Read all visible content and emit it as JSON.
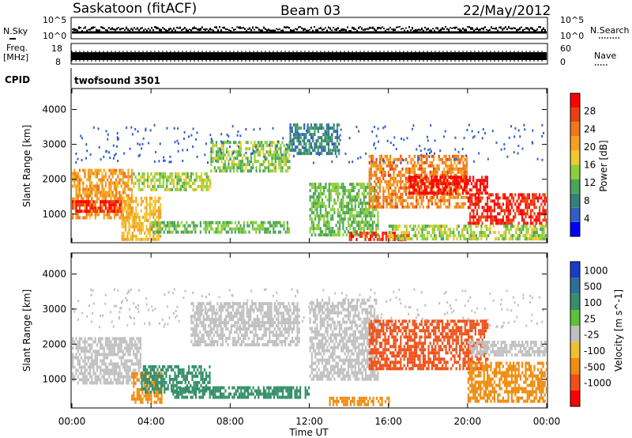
{
  "header": {
    "station": "Saskatoon (fitACF)",
    "beam": "Beam 03",
    "date": "22/May/2012"
  },
  "ancillary": {
    "nsky_label": "N.Sky",
    "nsearch_label": "N.Search",
    "noise_ticks": [
      "10^5",
      "10^0"
    ],
    "freq_label_top": "Freq.",
    "freq_label_bottom": "[MHz]",
    "freq_ticks": [
      "18",
      "8"
    ],
    "nave_label": "Nave",
    "nave_ticks": [
      "60",
      "0"
    ],
    "cpid_label": "CPID",
    "cpid_value": "twofsound 3501"
  },
  "chart_data": [
    {
      "type": "heatmap",
      "title": "",
      "xlabel": "Time UT",
      "ylabel": "Slant Range [km]",
      "xlim": [
        0,
        24
      ],
      "ylim": [
        180,
        4600
      ],
      "x_ticks": [
        "00:00",
        "04:00",
        "08:00",
        "12:00",
        "16:00",
        "20:00",
        "00:00"
      ],
      "y_ticks": [
        "1000",
        "2000",
        "3000",
        "4000"
      ],
      "colorbar": {
        "label": "Power [dB]",
        "ticks": [
          "4",
          "8",
          "12",
          "16",
          "20",
          "24",
          "28"
        ],
        "range": [
          0,
          30
        ],
        "colors": [
          "#0000ff",
          "#2f5fc6",
          "#35807a",
          "#4aa55a",
          "#8ccf3c",
          "#f0c830",
          "#f5a020",
          "#f07818",
          "#e84010",
          "#ff0000"
        ]
      },
      "bands": [
        {
          "t_start": 0.0,
          "t_end": 3.0,
          "r_min": 900,
          "r_max": 2300,
          "value": 20
        },
        {
          "t_start": 0.0,
          "t_end": 2.5,
          "r_min": 1100,
          "r_max": 1400,
          "value": 28
        },
        {
          "t_start": 2.5,
          "t_end": 4.5,
          "r_min": 300,
          "r_max": 1500,
          "value": 18
        },
        {
          "t_start": 3.0,
          "t_end": 7.0,
          "r_min": 1700,
          "r_max": 2200,
          "value": 14
        },
        {
          "t_start": 4.0,
          "t_end": 11.0,
          "r_min": 500,
          "r_max": 800,
          "value": 12
        },
        {
          "t_start": 7.0,
          "t_end": 11.0,
          "r_min": 2200,
          "r_max": 3100,
          "value": 13
        },
        {
          "t_start": 11.0,
          "t_end": 13.5,
          "r_min": 2700,
          "r_max": 3600,
          "value": 8
        },
        {
          "t_start": 12.0,
          "t_end": 15.5,
          "r_min": 400,
          "r_max": 1900,
          "value": 12
        },
        {
          "t_start": 14.0,
          "t_end": 17.0,
          "r_min": 300,
          "r_max": 500,
          "value": 26
        },
        {
          "t_start": 15.0,
          "t_end": 20.0,
          "r_min": 1200,
          "r_max": 2700,
          "value": 22
        },
        {
          "t_start": 17.0,
          "t_end": 21.0,
          "r_min": 1600,
          "r_max": 2100,
          "value": 29
        },
        {
          "t_start": 20.0,
          "t_end": 24.0,
          "r_min": 700,
          "r_max": 1600,
          "value": 27
        },
        {
          "t_start": 16.0,
          "t_end": 24.0,
          "r_min": 300,
          "r_max": 700,
          "value": 14
        }
      ]
    },
    {
      "type": "heatmap",
      "title": "",
      "xlabel": "Time UT",
      "ylabel": "Slant Range [km]",
      "xlim": [
        0,
        24
      ],
      "ylim": [
        180,
        4600
      ],
      "x_ticks": [
        "00:00",
        "04:00",
        "08:00",
        "12:00",
        "16:00",
        "20:00",
        "00:00"
      ],
      "y_ticks": [
        "1000",
        "2000",
        "3000",
        "4000"
      ],
      "colorbar": {
        "label": "Velocity [m s^-1]",
        "ticks": [
          "1000",
          "500",
          "100",
          "25",
          "-25",
          "-100",
          "-500",
          "-1000"
        ],
        "colors": [
          "#1a3cc8",
          "#2e6e9a",
          "#35906a",
          "#5fbf3a",
          "#c0c0c0",
          "#f0c030",
          "#f08c10",
          "#f05018",
          "#ff0000"
        ]
      },
      "bands": [
        {
          "t_start": 0.0,
          "t_end": 3.5,
          "r_min": 900,
          "r_max": 2200,
          "value": 0
        },
        {
          "t_start": 3.0,
          "t_end": 4.5,
          "r_min": 300,
          "r_max": 1200,
          "value": -150
        },
        {
          "t_start": 3.5,
          "t_end": 7.0,
          "r_min": 600,
          "r_max": 1400,
          "value": 150
        },
        {
          "t_start": 6.0,
          "t_end": 11.5,
          "r_min": 2000,
          "r_max": 3200,
          "value": 0
        },
        {
          "t_start": 5.0,
          "t_end": 12.0,
          "r_min": 500,
          "r_max": 800,
          "value": 120
        },
        {
          "t_start": 12.0,
          "t_end": 15.5,
          "r_min": 1000,
          "r_max": 3300,
          "value": 0
        },
        {
          "t_start": 13.0,
          "t_end": 16.0,
          "r_min": 300,
          "r_max": 500,
          "value": -150
        },
        {
          "t_start": 15.0,
          "t_end": 21.0,
          "r_min": 1300,
          "r_max": 2700,
          "value": -600
        },
        {
          "t_start": 20.0,
          "t_end": 24.0,
          "r_min": 1700,
          "r_max": 2100,
          "value": 0
        },
        {
          "t_start": 20.0,
          "t_end": 24.0,
          "r_min": 400,
          "r_max": 1500,
          "value": -400
        }
      ]
    }
  ]
}
